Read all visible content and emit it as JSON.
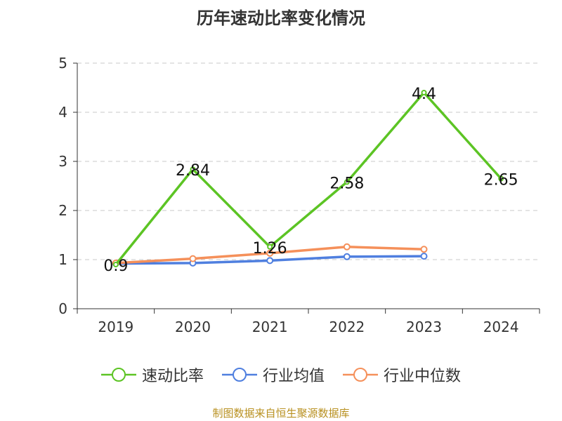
{
  "title": "历年速动比率变化情况",
  "footer": "制图数据来自恒生聚源数据库",
  "chart_data": {
    "type": "line",
    "title": "历年速动比率变化情况",
    "categories": [
      "2019",
      "2020",
      "2021",
      "2022",
      "2023",
      "2024"
    ],
    "ylim": [
      0,
      5
    ],
    "yticks": [
      0,
      1,
      2,
      3,
      4,
      5
    ],
    "grid": true,
    "legend_position": "bottom",
    "series": [
      {
        "name": "速动比率",
        "color": "#5cc424",
        "values": [
          0.9,
          2.84,
          1.26,
          2.58,
          4.4,
          2.65
        ],
        "data_labels": [
          "0.9",
          "2.84",
          "1.26",
          "2.58",
          "4.4",
          "2.65"
        ]
      },
      {
        "name": "行业均值",
        "color": "#4f7fdf",
        "values": [
          0.92,
          0.93,
          0.98,
          1.06,
          1.07,
          null
        ]
      },
      {
        "name": "行业中位数",
        "color": "#f5905a",
        "values": [
          0.93,
          1.02,
          1.13,
          1.26,
          1.21,
          null
        ]
      }
    ]
  }
}
